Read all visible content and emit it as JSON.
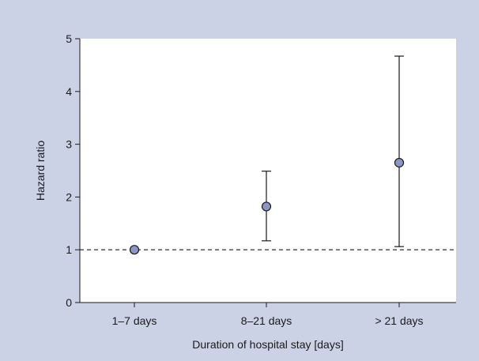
{
  "chart_data": {
    "type": "scatter",
    "title": "",
    "xlabel": "Duration of hospital stay [days]",
    "ylabel": "Hazard ratio",
    "categories": [
      "1–7 days",
      "8–21 days",
      "> 21 days"
    ],
    "series": [
      {
        "values": [
          1.0,
          1.82,
          2.65
        ],
        "ci_lower": [
          1.0,
          1.17,
          1.06
        ],
        "ci_upper": [
          1.0,
          2.49,
          4.67
        ]
      }
    ],
    "ylim": [
      0,
      5
    ],
    "yticks": [
      "0",
      "1",
      "2",
      "3",
      "4",
      "5"
    ],
    "reference_line": 1,
    "grid": false,
    "colors": {
      "background": "#ccd2e5",
      "plot_background": "#ffffff",
      "marker_fill": "#8a97c4",
      "line": "#1a1a1a"
    }
  }
}
